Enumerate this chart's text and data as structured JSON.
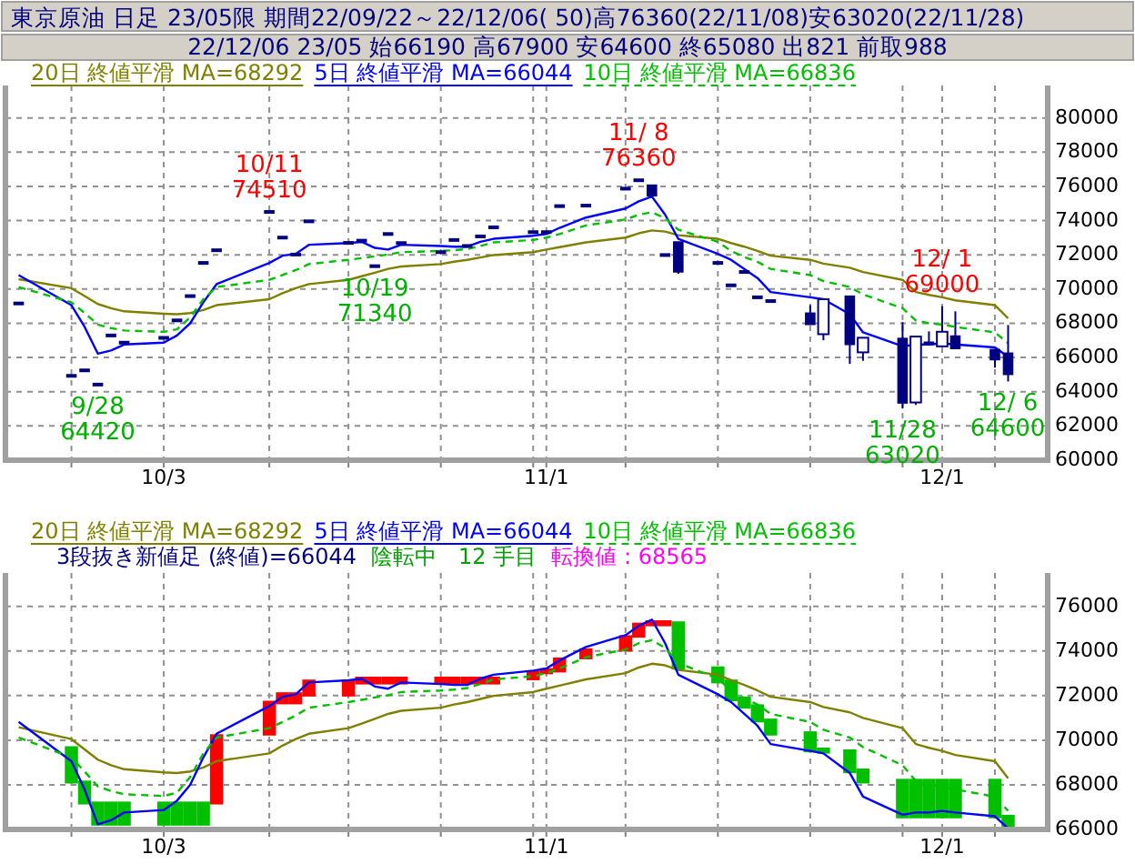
{
  "chart_data": [
    {
      "type": "candlestick",
      "title": "東京原油 日足 23/05限 期間22/09/22～22/12/06( 50)高76360(22/11/08)安63020(22/11/28)",
      "subtitle": "22/12/06 23/05 始66190 高67900 安64600 終65080 出821 前取988",
      "color": "#000080",
      "x": [
        "--09-22",
        "--09-26",
        "--09-27",
        "--09-28",
        "--09-29",
        "--09-30",
        "--10-03",
        "--10-04",
        "--10-05",
        "--10-06",
        "--10-07",
        "--10-11",
        "--10-12",
        "--10-13",
        "--10-14",
        "--10-17",
        "--10-18",
        "--10-19",
        "--10-20",
        "--10-21",
        "--10-24",
        "--10-25",
        "--10-26",
        "--10-27",
        "--10-28",
        "--10-31",
        "--11-01",
        "--11-02",
        "--11-04",
        "--11-07",
        "--11-08",
        "--11-09",
        "--11-10",
        "--11-11",
        "--11-14",
        "--11-15",
        "--11-16",
        "--11-17",
        "--11-18",
        "--11-21",
        "--11-22",
        "--11-24",
        "--11-25",
        "--11-28",
        "--11-29",
        "--11-30",
        "--12-01",
        "--12-02",
        "--12-05",
        "--12-06"
      ],
      "ohlc": [
        [
          69160,
          69160,
          69160,
          69160
        ],
        [
          64930,
          64930,
          64930,
          64930
        ],
        [
          65250,
          65250,
          65250,
          65250
        ],
        [
          64420,
          64420,
          64420,
          64420
        ],
        [
          67290,
          67290,
          67290,
          67290
        ],
        [
          66870,
          66870,
          66870,
          66870
        ],
        [
          67150,
          67150,
          67150,
          67150
        ],
        [
          68170,
          68170,
          68170,
          68170
        ],
        [
          69590,
          69590,
          69590,
          69590
        ],
        [
          71530,
          71530,
          71530,
          71530
        ],
        [
          72270,
          72270,
          72270,
          72270
        ],
        [
          74510,
          74510,
          74510,
          74510
        ],
        [
          73010,
          73010,
          73010,
          73010
        ],
        [
          72020,
          72020,
          72020,
          72020
        ],
        [
          73960,
          73960,
          73960,
          73960
        ],
        [
          72700,
          72700,
          72700,
          72700
        ],
        [
          72830,
          72830,
          72830,
          72830
        ],
        [
          71340,
          71340,
          71340,
          71340
        ],
        [
          73220,
          73220,
          73220,
          73220
        ],
        [
          72690,
          72690,
          72690,
          72690
        ],
        [
          72160,
          72160,
          72160,
          72160
        ],
        [
          72870,
          72870,
          72870,
          72870
        ],
        [
          72520,
          72520,
          72520,
          72520
        ],
        [
          73080,
          73080,
          73080,
          73080
        ],
        [
          73610,
          73610,
          73610,
          73610
        ],
        [
          73330,
          73330,
          73330,
          73330
        ],
        [
          73330,
          73330,
          73330,
          73330
        ],
        [
          74850,
          74850,
          74850,
          74850
        ],
        [
          74880,
          74880,
          74880,
          74880
        ],
        [
          75870,
          75870,
          75870,
          75870
        ],
        [
          76360,
          76360,
          76360,
          76360
        ],
        [
          76010,
          76010,
          75520,
          75520
        ],
        [
          71990,
          71990,
          71990,
          71990
        ],
        [
          72690,
          72690,
          70890,
          71070
        ],
        [
          71530,
          71530,
          71530,
          71530
        ],
        [
          70220,
          70220,
          70220,
          70220
        ],
        [
          71000,
          71000,
          71000,
          71000
        ],
        [
          69520,
          69520,
          69520,
          69520
        ],
        [
          69300,
          69300,
          69300,
          69300
        ],
        [
          68530,
          69060,
          68000,
          68000
        ],
        [
          67470,
          69300,
          67010,
          69300
        ],
        [
          69520,
          69520,
          65630,
          66830
        ],
        [
          66410,
          67050,
          65810,
          67050
        ],
        [
          67050,
          68070,
          63020,
          63410
        ],
        [
          63480,
          67120,
          63230,
          67120
        ],
        [
          66830,
          67530,
          66830,
          66830
        ],
        [
          66760,
          69000,
          66760,
          67400
        ],
        [
          67190,
          68700,
          66590,
          66590
        ],
        [
          66400,
          66400,
          65410,
          65940
        ],
        [
          66190,
          67900,
          64600,
          65080
        ]
      ],
      "series": [
        {
          "type": "line",
          "name": "20日 終値平滑 MA=68292",
          "color": "#808000",
          "line_style": "solid",
          "values": [
            70580,
            70050,
            69590,
            69130,
            68880,
            68700,
            68560,
            68530,
            68600,
            68780,
            69060,
            69410,
            69760,
            70050,
            70290,
            70540,
            70750,
            70960,
            71180,
            71320,
            71460,
            71600,
            71710,
            71850,
            71990,
            72160,
            72310,
            72450,
            72730,
            73010,
            73260,
            73430,
            73360,
            73150,
            72940,
            72690,
            72480,
            72230,
            71950,
            71710,
            71490,
            71250,
            71000,
            70540,
            69830,
            69660,
            69520,
            69340,
            69060,
            68292
          ]
        },
        {
          "type": "line",
          "name": "5日 終値平滑 MA=66044",
          "color": "#0000ff",
          "line_style": "solid",
          "values": [
            70820,
            69060,
            67790,
            66230,
            66410,
            66760,
            66870,
            67290,
            68000,
            69230,
            70290,
            71530,
            71950,
            72060,
            72590,
            72690,
            72760,
            72410,
            72310,
            72590,
            72520,
            72480,
            72480,
            72760,
            72940,
            73120,
            73220,
            73580,
            74180,
            74710,
            75130,
            75410,
            74350,
            72940,
            72060,
            71710,
            71180,
            70650,
            69830,
            69520,
            69410,
            68530,
            67470,
            66660,
            66760,
            66760,
            66830,
            66760,
            66590,
            66044
          ]
        },
        {
          "type": "line",
          "name": "10日 終値平滑 MA=66836",
          "color": "#00c000",
          "line_style": "dashed",
          "values": [
            70120,
            69230,
            68600,
            67930,
            67720,
            67580,
            67500,
            67650,
            68350,
            69410,
            70120,
            70540,
            70820,
            71110,
            71460,
            71710,
            71810,
            71920,
            72020,
            72160,
            72230,
            72270,
            72340,
            72520,
            72730,
            72870,
            73010,
            73220,
            73720,
            74070,
            74350,
            74490,
            74140,
            73470,
            72760,
            72230,
            71880,
            71600,
            71180,
            70820,
            70470,
            70120,
            69690,
            68880,
            68170,
            68000,
            67930,
            67790,
            67470,
            66836
          ]
        }
      ],
      "xlim": [
        "--09-21",
        "--12-09"
      ],
      "ylim": [
        60000,
        81900
      ],
      "yticks": [
        60000,
        62000,
        64000,
        66000,
        68000,
        70000,
        72000,
        74000,
        76000,
        78000,
        80000
      ],
      "xticks": [
        {
          "value": "--09-26",
          "label": null
        },
        {
          "value": "--10-03",
          "label": "10/3"
        },
        {
          "value": "--10-11",
          "label": null
        },
        {
          "value": "--10-17",
          "label": null
        },
        {
          "value": "--10-24",
          "label": null
        },
        {
          "value": "--10-31",
          "label": null
        },
        {
          "value": "--11-01",
          "label": "11/1"
        },
        {
          "value": "--11-07",
          "label": null
        },
        {
          "value": "--11-14",
          "label": null
        },
        {
          "value": "--11-21",
          "label": null
        },
        {
          "value": "--11-28",
          "label": null
        },
        {
          "value": "--12-01",
          "label": "12/1"
        },
        {
          "value": "--12-05",
          "label": null
        }
      ],
      "grid": true,
      "legend": "top left",
      "annotations": [
        {
          "text": "9/28\n64420",
          "x": "--09-28",
          "y": 64420
        },
        {
          "text": "10/11\n74510",
          "x": "--10-11",
          "y": 74510
        },
        {
          "text": "10/19\n71340",
          "x": "--10-19",
          "y": 71340
        },
        {
          "text": "11/ 8\n76360",
          "x": "--11-08",
          "y": 76360
        },
        {
          "text": "11/28\n63020",
          "x": "--11-28",
          "y": 63020
        },
        {
          "text": "12/ 1\n69000",
          "x": "--12-01",
          "y": 69000
        },
        {
          "text": "12/ 6\n64600",
          "x": "--12-06",
          "y": 64600
        }
      ]
    },
    {
      "type": "bar",
      "x": [
        "--09-22",
        "--09-26",
        "--09-27",
        "--09-28",
        "--09-29",
        "--09-30",
        "--10-03",
        "--10-04",
        "--10-05",
        "--10-06",
        "--10-07",
        "--10-11",
        "--10-12",
        "--10-13",
        "--10-14",
        "--10-17",
        "--10-18",
        "--10-19",
        "--10-20",
        "--10-21",
        "--10-24",
        "--10-25",
        "--10-26",
        "--10-27",
        "--10-28",
        "--10-31",
        "--11-01",
        "--11-02",
        "--11-04",
        "--11-07",
        "--11-08",
        "--11-09",
        "--11-10",
        "--11-11",
        "--11-14",
        "--11-15",
        "--11-16",
        "--11-17",
        "--11-18",
        "--11-21",
        "--11-22",
        "--11-24",
        "--11-25",
        "--11-28",
        "--11-29",
        "--11-30",
        "--12-01",
        "--12-02",
        "--12-05",
        "--12-06"
      ],
      "base": [
        null,
        68060,
        67120,
        66170,
        66170,
        66170,
        66170,
        66170,
        66170,
        66170,
        67120,
        70210,
        71610,
        71610,
        71960,
        71960,
        72500,
        72500,
        72500,
        72500,
        72500,
        72500,
        72500,
        72500,
        72500,
        72690,
        72960,
        73040,
        73630,
        73980,
        74600,
        75110,
        75110,
        73170,
        72550,
        71750,
        71420,
        70800,
        70210,
        69460,
        69400,
        68520,
        68060,
        66500,
        66500,
        66500,
        66500,
        66500,
        66500,
        66044
      ],
      "values": [
        null,
        1670,
        1070,
        1080,
        1080,
        1080,
        1080,
        1080,
        1080,
        1080,
        3150,
        1560,
        540,
        540,
        760,
        760,
        350,
        350,
        350,
        350,
        350,
        350,
        350,
        350,
        350,
        430,
        270,
        670,
        490,
        730,
        670,
        270,
        270,
        2160,
        760,
        970,
        540,
        810,
        760,
        940,
        270,
        1070,
        670,
        1770,
        1770,
        1770,
        1770,
        1770,
        1770,
        614
      ],
      "colors": [
        null,
        "#00c000",
        "#00c000",
        "#00c000",
        "#00c000",
        "#00c000",
        "#00c000",
        "#00c000",
        "#00c000",
        "#00c000",
        "#ff0000",
        "#ff0000",
        "#ff0000",
        "#ff0000",
        "#ff0000",
        "#ff0000",
        "#ff0000",
        "#ff0000",
        "#ff0000",
        "#ff0000",
        "#ff0000",
        "#ff0000",
        "#ff0000",
        "#ff0000",
        "#ff0000",
        "#ff0000",
        "#ff0000",
        "#ff0000",
        "#ff0000",
        "#ff0000",
        "#ff0000",
        "#ff0000",
        "#ff0000",
        "#00c000",
        "#00c000",
        "#00c000",
        "#00c000",
        "#00c000",
        "#00c000",
        "#00c000",
        "#00c000",
        "#00c000",
        "#00c000",
        "#00c000",
        "#00c000",
        "#00c000",
        "#00c000",
        "#00c000",
        "#00c000",
        "#00c000"
      ],
      "series": [
        {
          "type": "line",
          "name": "20日 終値平滑 MA=68292",
          "color": "#808000",
          "line_style": "solid",
          "values": [
            70580,
            70050,
            69590,
            69130,
            68880,
            68700,
            68560,
            68530,
            68600,
            68780,
            69060,
            69410,
            69760,
            70050,
            70290,
            70540,
            70750,
            70960,
            71180,
            71320,
            71460,
            71600,
            71710,
            71850,
            71990,
            72160,
            72310,
            72450,
            72730,
            73010,
            73260,
            73430,
            73360,
            73150,
            72940,
            72690,
            72480,
            72230,
            71950,
            71710,
            71490,
            71250,
            71000,
            70540,
            69830,
            69660,
            69520,
            69340,
            69060,
            68292
          ]
        },
        {
          "type": "line",
          "name": "5日 終値平滑 MA=66044",
          "color": "#0000ff",
          "line_style": "solid",
          "values": [
            70820,
            69060,
            67790,
            66230,
            66410,
            66760,
            66870,
            67290,
            68000,
            69230,
            70290,
            71530,
            71950,
            72060,
            72590,
            72690,
            72760,
            72410,
            72310,
            72590,
            72520,
            72480,
            72480,
            72760,
            72940,
            73120,
            73220,
            73580,
            74180,
            74710,
            75130,
            75410,
            74350,
            72940,
            72060,
            71710,
            71180,
            70650,
            69830,
            69520,
            69410,
            68530,
            67470,
            66660,
            66760,
            66760,
            66830,
            66760,
            66590,
            66044
          ]
        },
        {
          "type": "line",
          "name": "10日 終値平滑 MA=66836",
          "color": "#00c000",
          "line_style": "dashed",
          "values": [
            70120,
            69230,
            68600,
            67930,
            67720,
            67580,
            67500,
            67650,
            68350,
            69410,
            70120,
            70540,
            70820,
            71110,
            71460,
            71710,
            71810,
            71920,
            72020,
            72160,
            72230,
            72270,
            72340,
            72520,
            72730,
            72870,
            73010,
            73220,
            73720,
            74070,
            74350,
            74490,
            74140,
            73470,
            72760,
            72230,
            71880,
            71600,
            71180,
            70820,
            70470,
            70120,
            69690,
            68880,
            68170,
            68000,
            67930,
            67790,
            67470,
            66836
          ]
        }
      ],
      "xlim": [
        "--09-21",
        "--12-09"
      ],
      "ylim": [
        66000,
        77500
      ],
      "yticks": [
        66000,
        68000,
        70000,
        72000,
        74000,
        76000
      ],
      "xticks": [
        {
          "value": "--09-26",
          "label": null
        },
        {
          "value": "--10-03",
          "label": "10/3"
        },
        {
          "value": "--10-11",
          "label": null
        },
        {
          "value": "--10-17",
          "label": null
        },
        {
          "value": "--10-24",
          "label": null
        },
        {
          "value": "--10-31",
          "label": null
        },
        {
          "value": "--11-01",
          "label": "11/1"
        },
        {
          "value": "--11-07",
          "label": null
        },
        {
          "value": "--11-14",
          "label": null
        },
        {
          "value": "--11-21",
          "label": null
        },
        {
          "value": "--11-28",
          "label": null
        },
        {
          "value": "--12-01",
          "label": "12/1"
        },
        {
          "value": "--12-05",
          "label": null
        }
      ],
      "grid": true,
      "legend": "top left",
      "annotations": [
        "3段抜き新値足 (終値)=66044",
        "陰転中　12 手目",
        "転換値 : 68565"
      ]
    }
  ]
}
